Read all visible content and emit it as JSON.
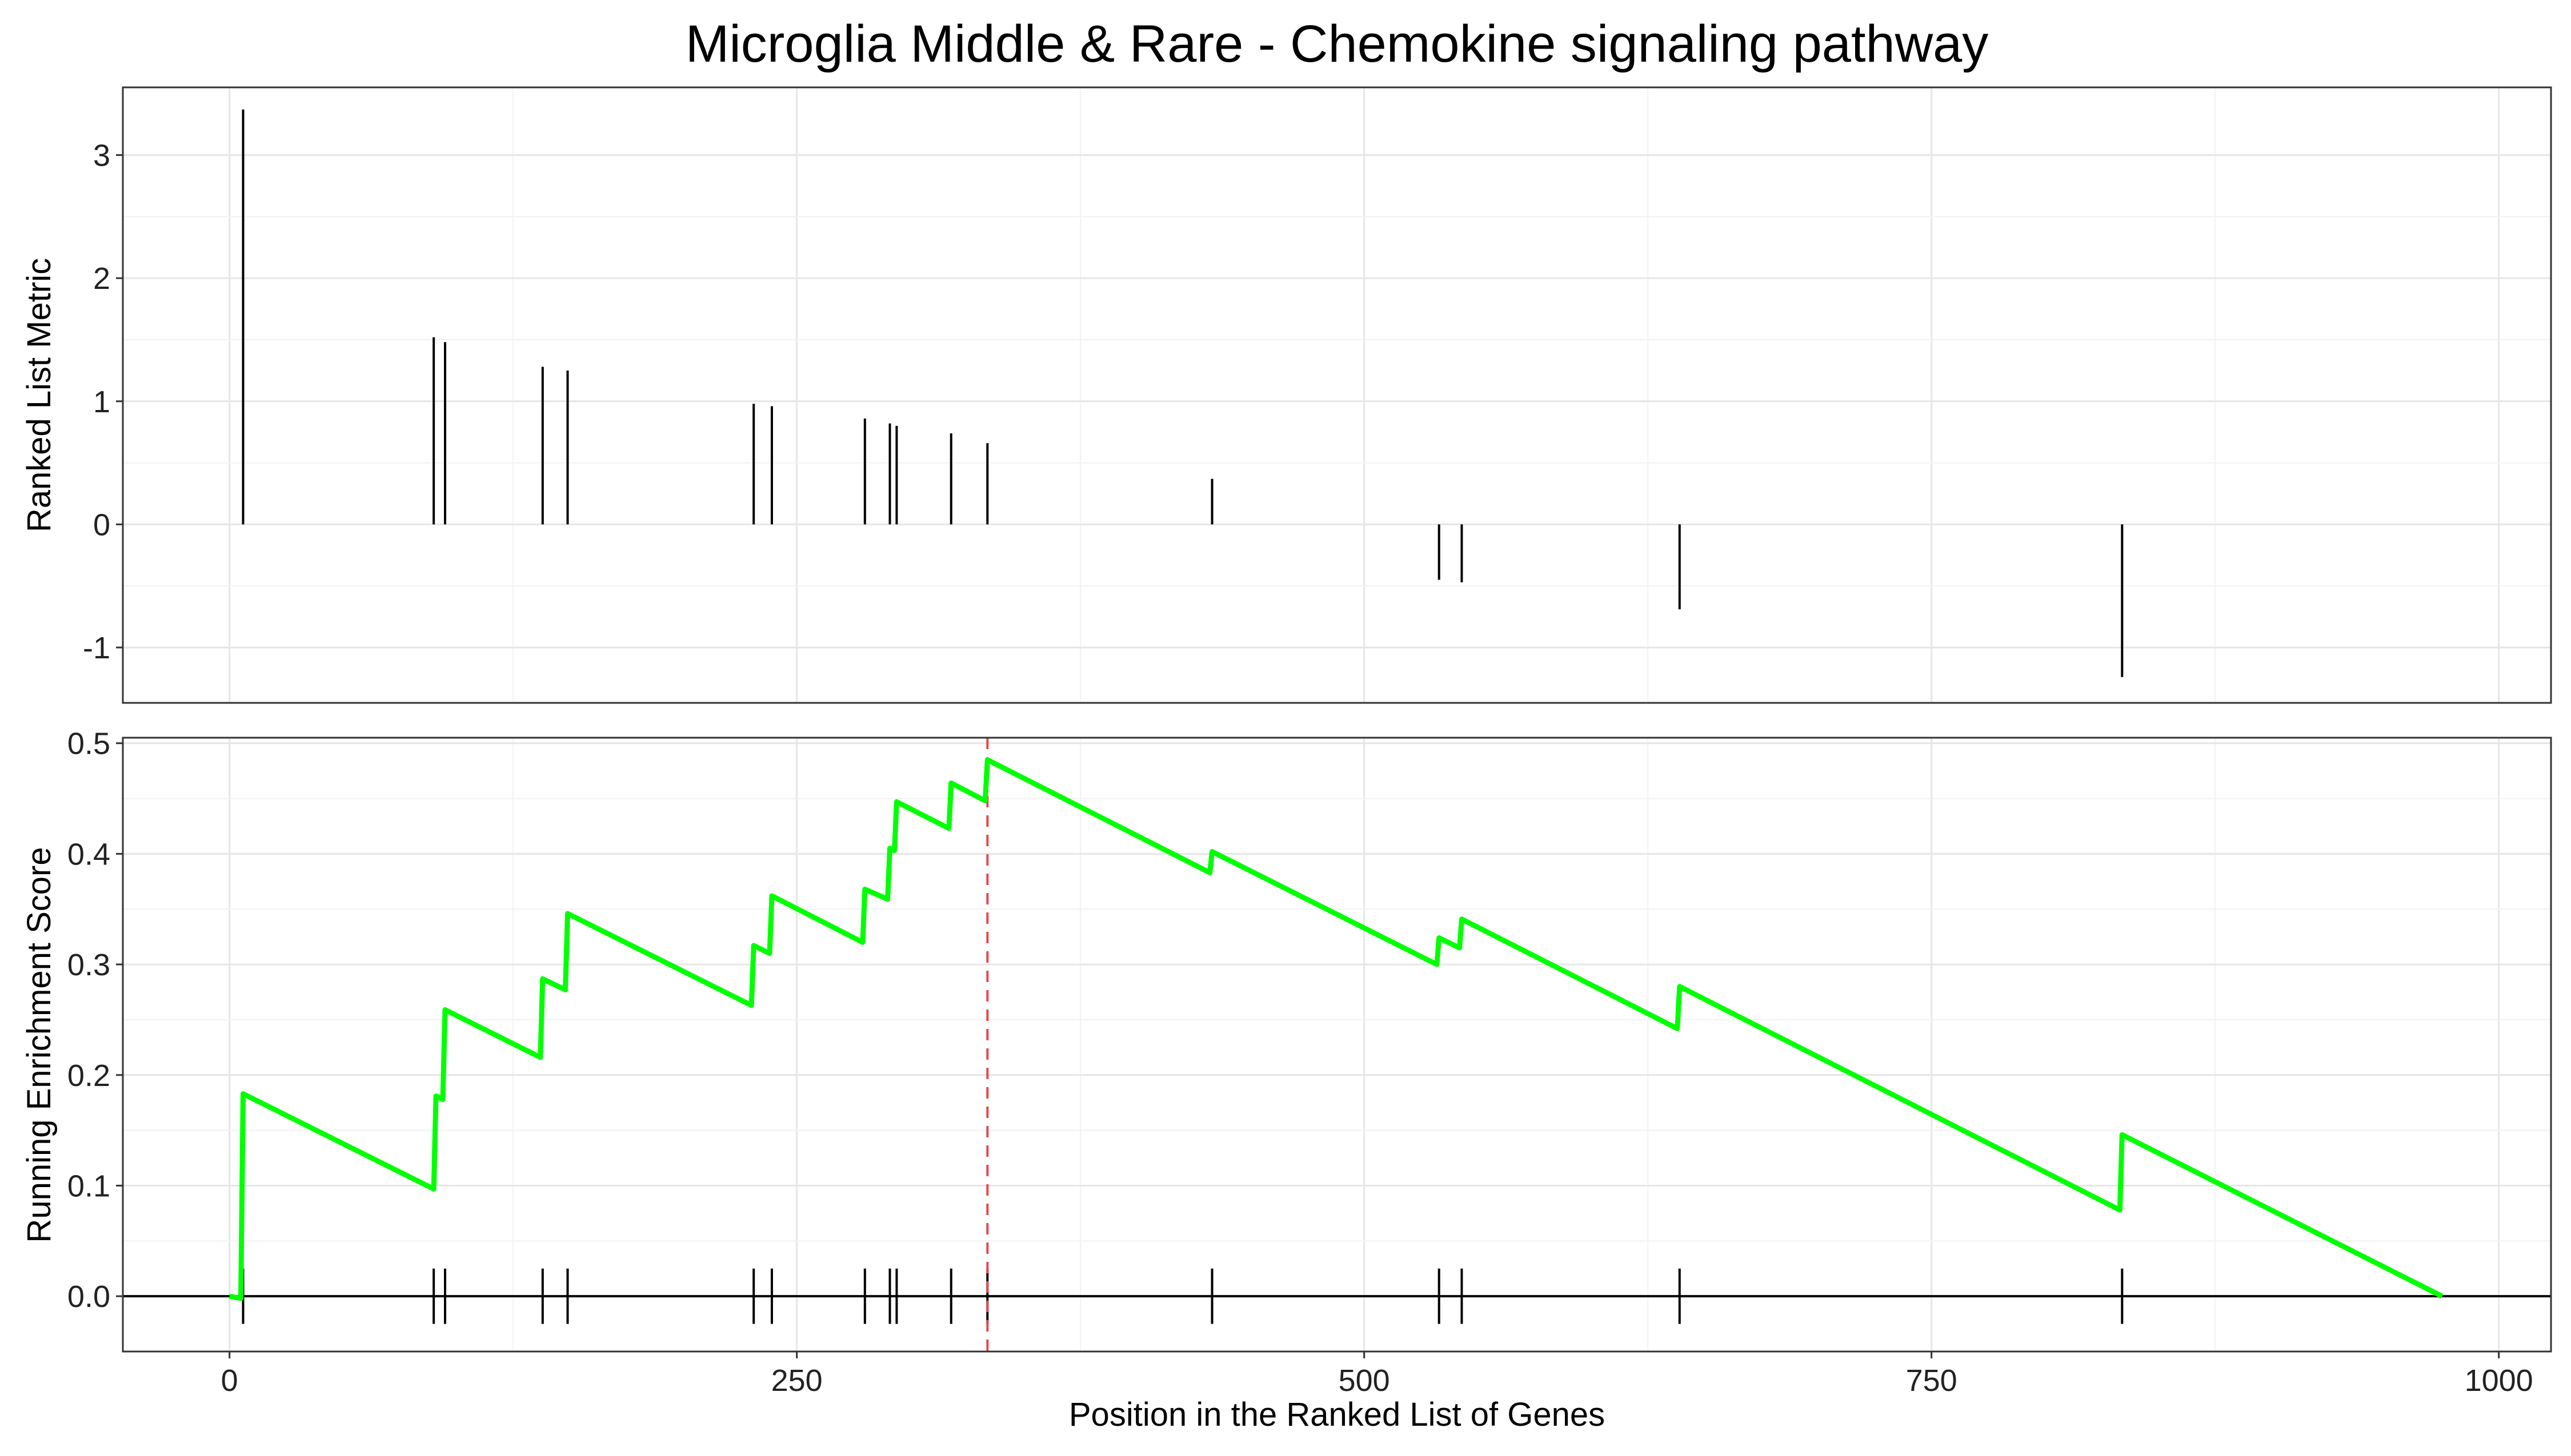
{
  "chart_data": [
    {
      "type": "bar",
      "panel": "ranked-list-metric",
      "title": "Microglia Middle & Rare - Chemokine signaling pathway",
      "ylabel": "Ranked List Metric",
      "xlim": [
        -47,
        1023
      ],
      "ylim": [
        -1.45,
        3.55
      ],
      "yticks": [
        -1,
        0,
        1,
        2,
        3
      ],
      "grid": true,
      "bars": [
        {
          "x": 6,
          "y": 3.37
        },
        {
          "x": 90,
          "y": 1.52
        },
        {
          "x": 95,
          "y": 1.48
        },
        {
          "x": 138,
          "y": 1.28
        },
        {
          "x": 149,
          "y": 1.25
        },
        {
          "x": 231,
          "y": 0.98
        },
        {
          "x": 239,
          "y": 0.96
        },
        {
          "x": 280,
          "y": 0.86
        },
        {
          "x": 291,
          "y": 0.82
        },
        {
          "x": 294,
          "y": 0.8
        },
        {
          "x": 318,
          "y": 0.74
        },
        {
          "x": 334,
          "y": 0.66
        },
        {
          "x": 433,
          "y": 0.37
        },
        {
          "x": 533,
          "y": -0.45
        },
        {
          "x": 543,
          "y": -0.47
        },
        {
          "x": 639,
          "y": -0.69
        },
        {
          "x": 834,
          "y": -1.24
        }
      ]
    },
    {
      "type": "line",
      "panel": "running-enrichment-score",
      "ylabel": "Running Enrichment Score",
      "xlabel": "Position in the Ranked List of Genes",
      "xlim": [
        -47,
        1023
      ],
      "ylim": [
        -0.05,
        0.505
      ],
      "xticks": [
        0,
        250,
        500,
        750,
        1000
      ],
      "yticks": [
        0.0,
        0.1,
        0.2,
        0.3,
        0.4,
        0.5
      ],
      "grid": true,
      "line_color": "#00FF00",
      "peak_line_color": "#E8474C",
      "peak_x": 334,
      "series": [
        {
          "x": [
            0,
            5,
            6,
            90,
            91,
            94,
            95,
            137,
            138,
            148,
            149,
            230,
            231,
            238,
            239,
            279,
            280,
            290,
            291,
            293,
            294,
            317,
            318,
            333,
            334,
            432,
            433,
            532,
            533,
            542,
            543,
            638,
            639,
            833,
            834,
            975
          ],
          "y": [
            0.0,
            -0.002,
            0.183,
            0.097,
            0.181,
            0.178,
            0.259,
            0.216,
            0.287,
            0.277,
            0.346,
            0.263,
            0.317,
            0.31,
            0.362,
            0.32,
            0.368,
            0.359,
            0.405,
            0.403,
            0.447,
            0.423,
            0.464,
            0.448,
            0.485,
            0.383,
            0.402,
            0.3,
            0.324,
            0.315,
            0.341,
            0.242,
            0.28,
            0.078,
            0.146,
            0.0
          ]
        }
      ],
      "hit_positions": [
        6,
        90,
        95,
        138,
        149,
        231,
        239,
        280,
        291,
        294,
        318,
        334,
        433,
        533,
        543,
        639,
        834
      ]
    }
  ]
}
